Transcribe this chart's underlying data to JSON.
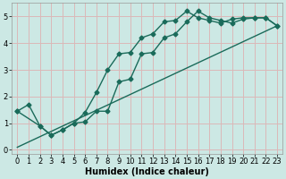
{
  "bg_color": "#cce8e4",
  "grid_color": "#dbb8b8",
  "line_color": "#1a6b5a",
  "marker": "D",
  "markersize": 2.5,
  "linewidth": 1.0,
  "xlabel": "Humidex (Indice chaleur)",
  "xlabel_fontsize": 7,
  "xlabel_fontweight": "bold",
  "tick_fontsize": 6,
  "ylim": [
    -0.15,
    5.5
  ],
  "xlim": [
    -0.5,
    23.5
  ],
  "yticks": [
    0,
    1,
    2,
    3,
    4,
    5
  ],
  "xticks": [
    0,
    1,
    2,
    3,
    4,
    5,
    6,
    7,
    8,
    9,
    10,
    11,
    12,
    13,
    14,
    15,
    16,
    17,
    18,
    19,
    20,
    21,
    22,
    23
  ],
  "line1_x": [
    0,
    1,
    2,
    3,
    4,
    5,
    6,
    7,
    8,
    9,
    10,
    11,
    12,
    13,
    14,
    15,
    16,
    17,
    18,
    19,
    20,
    21,
    22,
    23
  ],
  "line1_y": [
    1.45,
    1.7,
    0.9,
    0.55,
    0.75,
    1.0,
    1.4,
    2.15,
    3.0,
    3.6,
    3.65,
    4.2,
    4.35,
    4.8,
    4.85,
    5.2,
    4.95,
    4.85,
    4.75,
    4.9,
    4.95,
    4.95,
    4.95,
    4.65
  ],
  "line2_x": [
    0,
    2,
    3,
    4,
    5,
    6,
    7,
    8,
    9,
    10,
    11,
    12,
    13,
    14,
    15,
    16,
    17,
    18,
    19,
    20,
    21,
    22,
    23
  ],
  "line2_y": [
    1.45,
    0.9,
    0.55,
    0.75,
    1.0,
    1.05,
    1.45,
    1.45,
    2.55,
    2.65,
    3.6,
    3.65,
    4.2,
    4.35,
    4.8,
    5.2,
    4.95,
    4.85,
    4.75,
    4.9,
    4.95,
    4.95,
    4.65
  ],
  "line3_x": [
    0,
    23
  ],
  "line3_y": [
    0.1,
    4.65
  ]
}
